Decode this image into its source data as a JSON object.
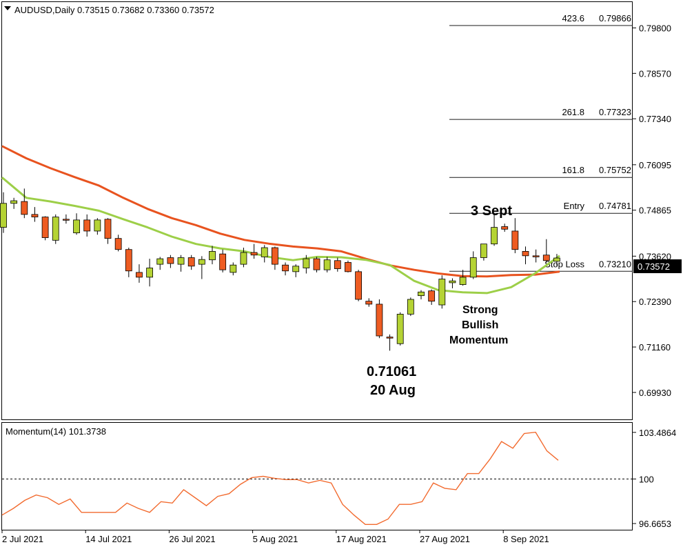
{
  "header": {
    "symbol_line": "AUDUSD,Daily  0.73515 0.73682 0.73360 0.73572"
  },
  "momentum_header": "Momentum(14) 101.3738",
  "annotations": {
    "low_price": "0.71061",
    "low_date": "20 Aug",
    "high_date": "3 Sept",
    "momentum_l1": "Strong",
    "momentum_l2": "Bullish",
    "momentum_l3": "Momentum"
  },
  "colors": {
    "bull": "#b5d334",
    "bear": "#ee5c22",
    "ma_fast": "#9dcf48",
    "ma_slow": "#e8531f",
    "momentum_line": "#f26a2e"
  },
  "chart_data": [
    {
      "type": "candlestick",
      "title": "AUDUSD,Daily",
      "ylim": [
        0.692,
        0.805
      ],
      "yticks": [
        "0.79800",
        "0.78570",
        "0.77340",
        "0.76095",
        "0.74865",
        "0.73620",
        "0.72390",
        "0.71160",
        "0.69930"
      ],
      "xticks": [
        "2 Jul 2021",
        "14 Jul 2021",
        "26 Jul 2021",
        "5 Aug 2021",
        "17 Aug 2021",
        "27 Aug 2021",
        "8 Sep 2021"
      ],
      "current_price": "0.73572",
      "ohlc": [
        {
          "o": 0.744,
          "h": 0.7535,
          "l": 0.7425,
          "c": 0.7505
        },
        {
          "o": 0.7505,
          "h": 0.752,
          "l": 0.749,
          "c": 0.7512
        },
        {
          "o": 0.751,
          "h": 0.7545,
          "l": 0.7465,
          "c": 0.7475
        },
        {
          "o": 0.7475,
          "h": 0.7495,
          "l": 0.7455,
          "c": 0.7468
        },
        {
          "o": 0.7468,
          "h": 0.747,
          "l": 0.7405,
          "c": 0.7412
        },
        {
          "o": 0.7405,
          "h": 0.7475,
          "l": 0.7395,
          "c": 0.7468
        },
        {
          "o": 0.7462,
          "h": 0.7475,
          "l": 0.745,
          "c": 0.746
        },
        {
          "o": 0.7425,
          "h": 0.7478,
          "l": 0.742,
          "c": 0.746
        },
        {
          "o": 0.746,
          "h": 0.7475,
          "l": 0.7415,
          "c": 0.743
        },
        {
          "o": 0.743,
          "h": 0.7465,
          "l": 0.742,
          "c": 0.746
        },
        {
          "o": 0.7462,
          "h": 0.7465,
          "l": 0.7395,
          "c": 0.741
        },
        {
          "o": 0.741,
          "h": 0.742,
          "l": 0.7375,
          "c": 0.738
        },
        {
          "o": 0.738,
          "h": 0.7385,
          "l": 0.7305,
          "c": 0.7322
        },
        {
          "o": 0.7318,
          "h": 0.734,
          "l": 0.729,
          "c": 0.7305
        },
        {
          "o": 0.7305,
          "h": 0.7355,
          "l": 0.728,
          "c": 0.733
        },
        {
          "o": 0.734,
          "h": 0.736,
          "l": 0.7325,
          "c": 0.7355
        },
        {
          "o": 0.7358,
          "h": 0.7365,
          "l": 0.733,
          "c": 0.7342
        },
        {
          "o": 0.734,
          "h": 0.7365,
          "l": 0.732,
          "c": 0.7358
        },
        {
          "o": 0.7358,
          "h": 0.7365,
          "l": 0.7325,
          "c": 0.7335
        },
        {
          "o": 0.734,
          "h": 0.7362,
          "l": 0.73,
          "c": 0.7353
        },
        {
          "o": 0.7352,
          "h": 0.739,
          "l": 0.734,
          "c": 0.7375
        },
        {
          "o": 0.7368,
          "h": 0.738,
          "l": 0.7318,
          "c": 0.7325
        },
        {
          "o": 0.7318,
          "h": 0.7345,
          "l": 0.731,
          "c": 0.7338
        },
        {
          "o": 0.734,
          "h": 0.7385,
          "l": 0.7332,
          "c": 0.7372
        },
        {
          "o": 0.7372,
          "h": 0.7395,
          "l": 0.7355,
          "c": 0.7365
        },
        {
          "o": 0.736,
          "h": 0.7392,
          "l": 0.7345,
          "c": 0.7385
        },
        {
          "o": 0.7385,
          "h": 0.7388,
          "l": 0.7325,
          "c": 0.734
        },
        {
          "o": 0.7338,
          "h": 0.7345,
          "l": 0.731,
          "c": 0.7322
        },
        {
          "o": 0.732,
          "h": 0.734,
          "l": 0.7305,
          "c": 0.7335
        },
        {
          "o": 0.733,
          "h": 0.7365,
          "l": 0.7315,
          "c": 0.7355
        },
        {
          "o": 0.7355,
          "h": 0.736,
          "l": 0.7318,
          "c": 0.7325
        },
        {
          "o": 0.7325,
          "h": 0.736,
          "l": 0.7318,
          "c": 0.7352
        },
        {
          "o": 0.735,
          "h": 0.7358,
          "l": 0.732,
          "c": 0.7328
        },
        {
          "o": 0.7345,
          "h": 0.735,
          "l": 0.7318,
          "c": 0.732
        },
        {
          "o": 0.732,
          "h": 0.7325,
          "l": 0.724,
          "c": 0.7245
        },
        {
          "o": 0.724,
          "h": 0.7248,
          "l": 0.7225,
          "c": 0.7232
        },
        {
          "o": 0.7232,
          "h": 0.7245,
          "l": 0.714,
          "c": 0.7146
        },
        {
          "o": 0.7143,
          "h": 0.715,
          "l": 0.7106,
          "c": 0.714
        },
        {
          "o": 0.7125,
          "h": 0.721,
          "l": 0.712,
          "c": 0.7205
        },
        {
          "o": 0.7205,
          "h": 0.725,
          "l": 0.72,
          "c": 0.7245
        },
        {
          "o": 0.7255,
          "h": 0.727,
          "l": 0.7245,
          "c": 0.7265
        },
        {
          "o": 0.7268,
          "h": 0.7272,
          "l": 0.723,
          "c": 0.724
        },
        {
          "o": 0.723,
          "h": 0.731,
          "l": 0.722,
          "c": 0.73
        },
        {
          "o": 0.729,
          "h": 0.7302,
          "l": 0.7275,
          "c": 0.7295
        },
        {
          "o": 0.7285,
          "h": 0.7325,
          "l": 0.7282,
          "c": 0.7305
        },
        {
          "o": 0.7305,
          "h": 0.7375,
          "l": 0.73,
          "c": 0.7358
        },
        {
          "o": 0.7358,
          "h": 0.7395,
          "l": 0.735,
          "c": 0.7395
        },
        {
          "o": 0.7395,
          "h": 0.7478,
          "l": 0.739,
          "c": 0.744
        },
        {
          "o": 0.7442,
          "h": 0.745,
          "l": 0.7428,
          "c": 0.7435
        },
        {
          "o": 0.743,
          "h": 0.7465,
          "l": 0.737,
          "c": 0.738
        },
        {
          "o": 0.7375,
          "h": 0.7388,
          "l": 0.734,
          "c": 0.7363
        },
        {
          "o": 0.7363,
          "h": 0.738,
          "l": 0.7345,
          "c": 0.736
        },
        {
          "o": 0.7365,
          "h": 0.7408,
          "l": 0.7345,
          "c": 0.735
        },
        {
          "o": 0.7348,
          "h": 0.7368,
          "l": 0.7336,
          "c": 0.7357
        }
      ],
      "ma_fast": [
        0.7575,
        0.752,
        0.751,
        0.7498,
        0.7485,
        0.7462,
        0.744,
        0.7415,
        0.7395,
        0.7383,
        0.7375,
        0.736,
        0.7351,
        0.736,
        0.7359,
        0.7352,
        0.7338,
        0.7295,
        0.727,
        0.7264,
        0.7262,
        0.7278,
        0.7316,
        0.7363
      ],
      "ma_slow": [
        0.766,
        0.7627,
        0.76,
        0.7576,
        0.7553,
        0.752,
        0.749,
        0.7465,
        0.7446,
        0.7423,
        0.7406,
        0.7396,
        0.7388,
        0.7383,
        0.7375,
        0.7355,
        0.7337,
        0.7325,
        0.7315,
        0.7308,
        0.7307,
        0.7311,
        0.7312,
        0.732
      ],
      "levels": [
        {
          "label": "423.6",
          "price": "0.79866"
        },
        {
          "label": "261.8",
          "price": "0.77323"
        },
        {
          "label": "161.8",
          "price": "0.75752"
        },
        {
          "label": "Entry",
          "price": "0.74781"
        },
        {
          "label": "Stop Loss",
          "price": "0.73210"
        }
      ]
    },
    {
      "type": "line",
      "title": "Momentum(14) 101.3738",
      "ylim": [
        96.2,
        104.2
      ],
      "yticks": [
        "103.4864",
        "100",
        "96.6653"
      ],
      "reference_level": 100,
      "values": [
        97.3,
        97.8,
        98.4,
        98.8,
        98.6,
        98.1,
        98.5,
        97.5,
        97.5,
        97.5,
        97.5,
        98.2,
        97.8,
        97.5,
        98.3,
        98.2,
        99.2,
        98.6,
        98.0,
        98.7,
        98.9,
        99.6,
        100.1,
        100.2,
        100.05,
        99.95,
        99.95,
        99.7,
        99.9,
        99.7,
        98.1,
        97.3,
        96.6,
        96.6,
        97.0,
        98.1,
        98.1,
        98.3,
        99.7,
        99.3,
        99.2,
        100.4,
        100.4,
        101.5,
        102.8,
        102.3,
        103.4,
        103.5,
        102.1,
        101.4
      ]
    }
  ]
}
